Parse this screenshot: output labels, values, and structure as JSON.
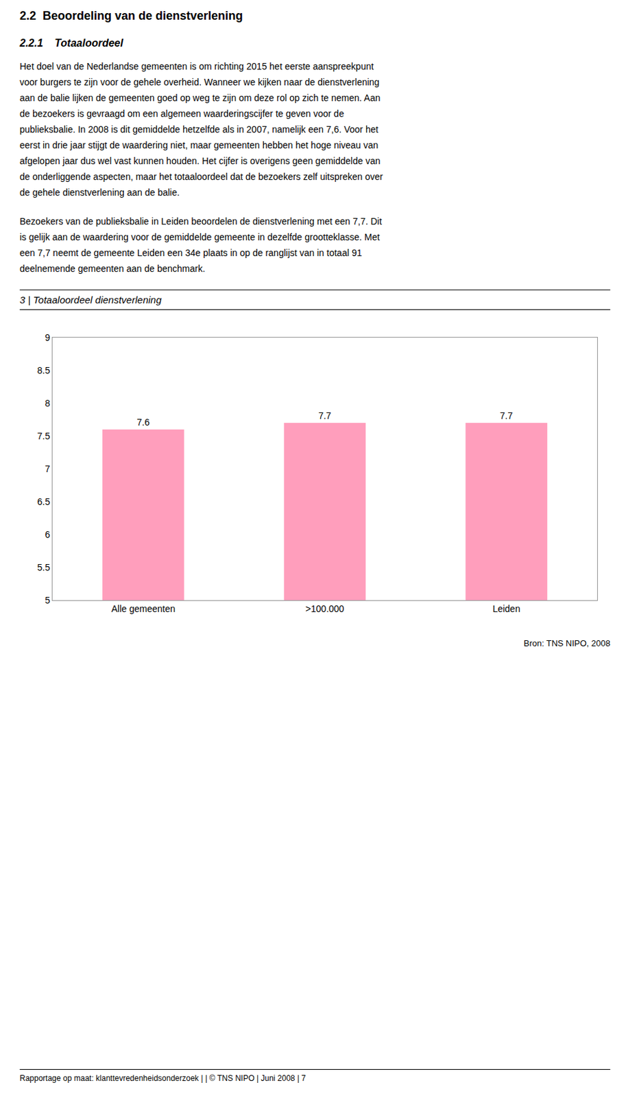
{
  "title": "2.2  Beoordeling van de dienstverlening",
  "subtitle": "2.2.1    Totaaloordeel",
  "annotations": [
    "Het doel van de Nederlandse gemeenten is om richting 2015 het eerste aanspreekpunt",
    "voor burgers te zijn voor de gehele overheid. Wanneer we kijken naar de dienstverlening",
    "aan de balie lijken de gemeenten goed op weg te zijn om deze rol op zich te nemen. Aan",
    "de bezoekers is gevraagd om een algemeen waarderingscijfer te geven voor de",
    "publieksbalie. In 2008 is dit gemiddelde hetzelfde als in 2007, namelijk een 7,6. Voor het",
    "eerst in drie jaar stijgt de waardering niet, maar gemeenten hebben het hoge niveau van",
    "afgelopen jaar dus wel vast kunnen houden. Het cijfer is overigens geen gemiddelde van",
    "de onderliggende aspecten, maar het totaaloordeel dat de bezoekers zelf uitspreken over",
    "de gehele dienstverlening aan de balie.",
    "Bezoekers van de publieksbalie in Leiden beoordelen de dienstverlening met een 7,7. Dit",
    "is gelijk aan de waardering voor de gemiddelde gemeente in dezelfde grootteklasse. Met",
    "een 7,7 neemt de gemeente Leiden een 34e plaats in op de ranglijst van in totaal 91",
    "deelnemende gemeenten aan de benchmark.",
    "Bron: TNS NIPO, 2008",
    "Rapportage op maat: klanttevredenheidsonderzoek | | © TNS NIPO | Juni 2008 | 7"
  ],
  "chart_data": {
    "type": "bar",
    "title": "3 | Totaaloordeel dienstverlening",
    "categories": [
      "Alle gemeenten",
      ">100.000",
      "Leiden"
    ],
    "values": [
      7.6,
      7.7,
      7.7
    ],
    "color": "#FF9EBC",
    "ylim": [
      5,
      9
    ],
    "yticks": [
      5,
      5.5,
      6,
      6.5,
      7,
      7.5,
      8,
      8.5,
      9
    ],
    "grid": false,
    "data_labels": true
  }
}
